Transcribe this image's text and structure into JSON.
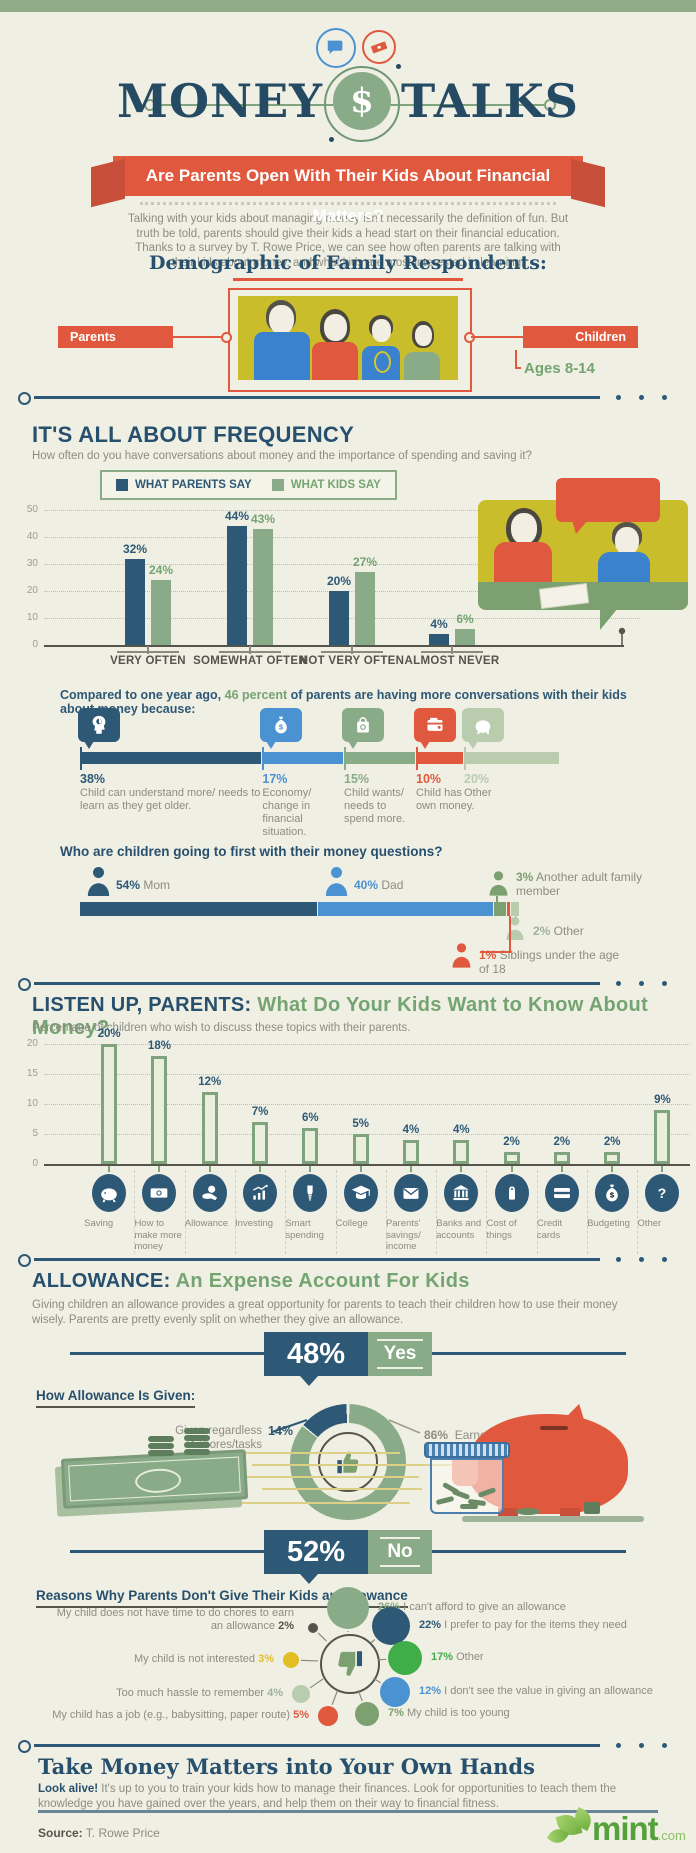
{
  "header": {
    "title_left": "MONEY",
    "title_right": "TALKS",
    "coin_symbol": "$"
  },
  "ribbon": {
    "text": "Are Parents Open With Their Kids About Financial Matters?"
  },
  "intro": "Talking with your kids about managing money isn't necessarily the definition of fun. But truth be told, parents should give their kids a head start on their financial education. Thanks to a survey by T. Rowe Price, we can see how often parents are talking with their kids about money, and what kids are most interested in learning.",
  "demographic": {
    "title": "Demographic of Family Respondents:",
    "parents_label": "Parents",
    "children_label": "Children",
    "children_ages": "Ages 8-14"
  },
  "frequency": {
    "title": "IT'S ALL ABOUT FREQUENCY",
    "subtitle": "How often do you have conversations about money and the importance of spending and saving it?",
    "compared_pre": "Compared to one year ago, ",
    "compared_highlight": "46 percent",
    "compared_post": " of parents are having more conversations with their kids about money because:",
    "who_title": "Who are children going to first with their money questions?"
  },
  "listen": {
    "title_navy": "LISTEN UP, PARENTS:",
    "title_green": " What Do Your Kids Want to Know About Money?",
    "subtitle": "Percentage of children who wish to discuss these topics with their parents."
  },
  "allowance": {
    "title_navy": "ALLOWANCE:",
    "title_green": " An Expense Account For Kids",
    "paragraph": "Giving children an allowance provides a great opportunity for parents to teach their children how to use their money wisely. Parents are pretty evenly split on whether they give an allowance.",
    "yes_pct": "48%",
    "yes_label": "Yes",
    "no_pct": "52%",
    "no_label": "No",
    "how_given_title": "How Allowance Is Given:",
    "given_label_line1": "Given regardless",
    "given_label_line2": "of chores/tasks",
    "given_pct": "14%",
    "earned_pct": "86%",
    "earned_label": "Earned",
    "reasons_title": "Reasons Why Parents Don't Give Their Kids an Allowance"
  },
  "closing": {
    "title": "Take Money Matters into Your Own Hands",
    "lead": "Look alive!",
    "text": " It's up to you to train your kids how to manage their finances. Look for opportunities to teach them the knowledge you have gained over the years, and help them on their way to financial fitness."
  },
  "footer": {
    "source_label": "Source:",
    "source_value": " T. Rowe Price",
    "logo_text": "mint",
    "logo_suffix": ".com"
  },
  "chart_data": [
    {
      "id": "conversation_frequency",
      "type": "bar",
      "title": "IT'S ALL ABOUT FREQUENCY",
      "categories": [
        "VERY OFTEN",
        "SOMEWHAT OFTEN",
        "NOT VERY OFTEN",
        "ALMOST NEVER"
      ],
      "series": [
        {
          "name": "WHAT PARENTS SAY",
          "color": "#2d5876",
          "values": [
            32,
            44,
            20,
            4
          ]
        },
        {
          "name": "WHAT KIDS  SAY",
          "color": "#8aab88",
          "values": [
            24,
            43,
            27,
            6
          ]
        }
      ],
      "unit": "%",
      "ylim": [
        0,
        50
      ],
      "yticks": [
        0,
        10,
        20,
        30,
        40,
        50
      ],
      "grid": "dotted-horizontal",
      "legend_position": "top"
    },
    {
      "id": "why_more_conversations",
      "type": "stacked-bar-horizontal",
      "segments": [
        {
          "pct": 38,
          "label": "Child can understand more/ needs to learn as they get older.",
          "color": "#2d5876",
          "icon": "head-icon"
        },
        {
          "pct": 17,
          "label": "Economy/ change in financial situation.",
          "color": "#4b92d2",
          "icon": "money-bag-icon"
        },
        {
          "pct": 15,
          "label": "Child wants/ needs to spend more.",
          "color": "#8aab88",
          "icon": "shopping-bag-icon"
        },
        {
          "pct": 10,
          "label": "Child has own money.",
          "color": "#e0593f",
          "icon": "wallet-icon"
        },
        {
          "pct": 20,
          "label": "Other",
          "color": "#b9ccae",
          "icon": "piggy-bank-icon"
        }
      ]
    },
    {
      "id": "who_children_ask_first",
      "type": "stacked-bar-horizontal",
      "segments": [
        {
          "pct": 54,
          "label": "Mom",
          "color": "#2d5876"
        },
        {
          "pct": 40,
          "label": "Dad",
          "color": "#4b92d2"
        },
        {
          "pct": 3,
          "label": "Another adult family member",
          "color": "#7ca06f"
        },
        {
          "pct": 1,
          "label": "Siblings under the age of 18",
          "color": "#e0593f"
        },
        {
          "pct": 2,
          "label": "Other",
          "color": "#b9ccae"
        }
      ]
    },
    {
      "id": "topics_kids_want_to_know",
      "type": "bar",
      "title": "LISTEN UP, PARENTS: What Do Your Kids Want to Know About Money?",
      "categories": [
        "Saving",
        "How to make more money",
        "Allowance",
        "Investing",
        "Smart spending",
        "College",
        "Parents' savings/ income",
        "Banks and accounts",
        "Cost of things",
        "Credit cards",
        "Budgeting",
        "Other"
      ],
      "values": [
        20,
        18,
        12,
        7,
        6,
        5,
        4,
        4,
        2,
        2,
        2,
        9
      ],
      "icons": [
        "saving-icon",
        "banknote-icon",
        "hand-coin-icon",
        "investing-icon",
        "lightbulb-icon",
        "grad-cap-icon",
        "envelope-icon",
        "bank-icon",
        "price-tag-icon",
        "credit-card-icon",
        "money-bag-icon",
        "question-icon"
      ],
      "unit": "%",
      "ylim": [
        0,
        20
      ],
      "yticks": [
        0,
        5,
        10,
        15,
        20
      ],
      "bar_color": "#7fa37d",
      "grid": "dotted-horizontal"
    },
    {
      "id": "allowance_given_split",
      "type": "pie",
      "slices": [
        {
          "label": "Earned",
          "pct": 86,
          "color": "#8aab88"
        },
        {
          "label": "Given regardless of chores/tasks",
          "pct": 14,
          "color": "#2d5876"
        }
      ],
      "center_icon": "thumb-up-icon"
    },
    {
      "id": "no_allowance_reasons",
      "type": "bubble",
      "center_icon": "thumb-down-icon",
      "points": [
        {
          "pct": 26,
          "label": "I can't afford to give an allowance",
          "color": "#8aab88",
          "side": "right"
        },
        {
          "pct": 22,
          "label": "I prefer to pay for the items they need",
          "color": "#2d5876",
          "side": "right"
        },
        {
          "pct": 17,
          "label": "Other",
          "color": "#3fae49",
          "side": "right"
        },
        {
          "pct": 12,
          "label": "I don't see the value in giving an allowance",
          "color": "#4b92d2",
          "side": "right"
        },
        {
          "pct": 7,
          "label": "My child is too young",
          "color": "#7ca06f",
          "side": "right"
        },
        {
          "pct": 5,
          "label": "My child has a job (e.g., babysitting, paper route)",
          "color": "#e0593f",
          "side": "left"
        },
        {
          "pct": 4,
          "label": "Too much hassle to remember",
          "color": "#b9ccae",
          "side": "left"
        },
        {
          "pct": 3,
          "label": "My child is not interested",
          "color": "#e3bf25",
          "side": "left"
        },
        {
          "pct": 2,
          "label": "My child does not have time to do chores to earn an allowance",
          "color": "#55554c",
          "side": "left"
        }
      ]
    }
  ]
}
